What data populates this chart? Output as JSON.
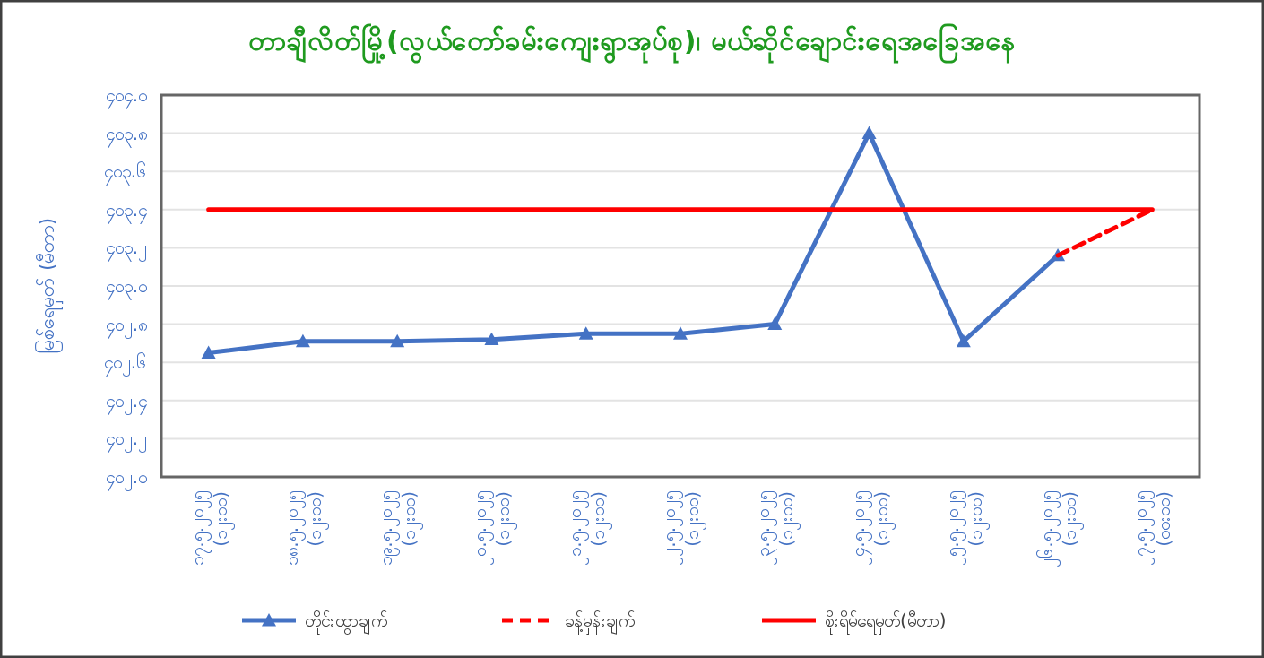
{
  "chart_data": {
    "type": "line",
    "title": "တာချီလိတ်မြို့(လွယ်တော်ခမ်းကျေးရွာအုပ်စု)၊ မယ်ဆိုင်ချောင်းရေအခြေအနေ",
    "ylabel": "မြစ်ရေမှတ် (မီတာ)",
    "categories": [
      "၁၇.၅.၂၀၂၅\n(၁၂း၀၀)",
      "၁၈.၅.၂၀၂၅\n(၁၂း၀၀)",
      "၁၉.၅.၂၀၂၅\n(၁၂း၀၀)",
      "၂၀.၅.၂၀၂၅\n(၁၂း၀၀)",
      "၂၁.၅.၂၀၂၅\n(၁၂း၀၀)",
      "၂၂.၅.၂၀၂၅\n(၁၂း၀၀)",
      "၂၃.၅.၂၀၂၅\n(၁၂း၀၀)",
      "၂၄.၅.၂၀၂၅\n(၁၂း၀၀)",
      "၂၅.၅.၂၀၂၅\n(၁၂း၀၀)",
      "၂၆.၅.၂၀၂၅\n(၁၂း၀၀)",
      "၂၇.၅.၂၀၂၅\n(၀၀း၀၀)"
    ],
    "series": [
      {
        "name": "တိုင်းထွာချက်",
        "color": "#4472c4",
        "marker": "triangle",
        "line_style": "solid",
        "values": [
          402.65,
          402.71,
          402.71,
          402.72,
          402.75,
          402.75,
          402.8,
          403.8,
          402.71,
          403.16,
          null
        ]
      },
      {
        "name": "ခန့်မှန်းချက်",
        "color": "#ff0000",
        "marker": "none",
        "line_style": "dashed",
        "values": [
          null,
          null,
          null,
          null,
          null,
          null,
          null,
          null,
          null,
          403.16,
          403.4
        ]
      },
      {
        "name": "စိုးရိမ်ရေမှတ်(မီတာ)",
        "color": "#ff0000",
        "marker": "none",
        "line_style": "solid",
        "values": [
          403.4,
          403.4,
          403.4,
          403.4,
          403.4,
          403.4,
          403.4,
          403.4,
          403.4,
          403.4,
          403.4
        ]
      }
    ],
    "ylim": [
      402,
      404
    ],
    "yticks": [
      {
        "value": 402,
        "label": "၄၀၂.၀"
      },
      {
        "value": 402.2,
        "label": "၄၀၂.၂"
      },
      {
        "value": 402.4,
        "label": "၄၀၂.၄"
      },
      {
        "value": 402.6,
        "label": "၄၀၂.၆"
      },
      {
        "value": 402.8,
        "label": "၄၀၂.၈"
      },
      {
        "value": 403,
        "label": "၄၀၃.၀"
      },
      {
        "value": 403.2,
        "label": "၄၀၃.၂"
      },
      {
        "value": 403.4,
        "label": "၄၀၃.၄"
      },
      {
        "value": 403.6,
        "label": "၄၀၃.၆"
      },
      {
        "value": 403.8,
        "label": "၄၀၃.၈"
      },
      {
        "value": 404,
        "label": "၄၀၄.၀"
      }
    ],
    "grid": "y",
    "legend": "bottom"
  }
}
